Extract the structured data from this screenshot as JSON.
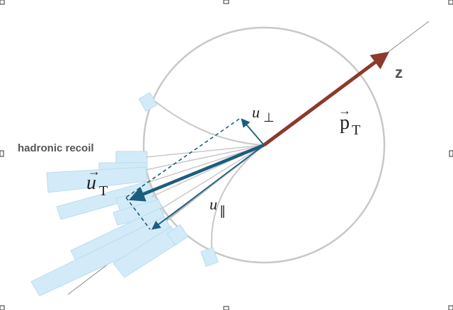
{
  "diagram": {
    "labels": {
      "hadronic_recoil": "hadronic recoil",
      "z_axis": "z",
      "pT": {
        "base": "p",
        "sub": "T",
        "arrow": "→"
      },
      "uT": {
        "base": "u",
        "sub": "T",
        "arrow": "→"
      },
      "u_perp": {
        "base": "u",
        "sub": "⊥"
      },
      "u_par": {
        "base": "u",
        "sub": "∥"
      }
    },
    "colors": {
      "circle": "#c8c8c8",
      "recoil_bars": "#d3ebf8",
      "recoil_bar_edge": "#b9dcef",
      "pT_arrow": "#8b3a2b",
      "uT_arrow": "#1c5d7c",
      "z_axis_line": "#8a8a8a",
      "label_gray": "#555555",
      "label_dark": "#222222"
    }
  }
}
